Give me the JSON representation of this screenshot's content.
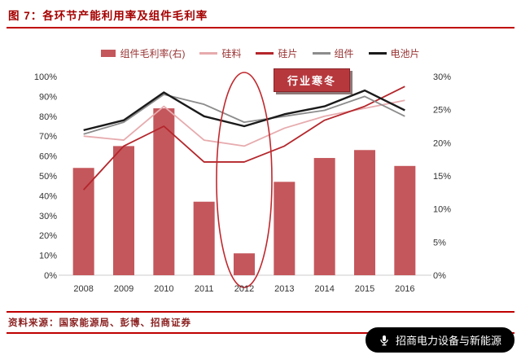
{
  "header": {
    "title": "图 7：各环节产能利用率及组件毛利率"
  },
  "chart_data": {
    "type": "combo(bar+line)",
    "title": "各环节产能利用率及组件毛利率",
    "categories": [
      "2008",
      "2009",
      "2010",
      "2011",
      "2012",
      "2013",
      "2014",
      "2015",
      "2016"
    ],
    "bar_series": {
      "id": "module-gross-margin",
      "name": "组件毛利率(右)",
      "axis": "right",
      "color": "#c4575c",
      "values": [
        16.2,
        19.5,
        25.2,
        11.1,
        3.3,
        14.1,
        17.7,
        18.9,
        16.5
      ]
    },
    "line_series": [
      {
        "id": "silicon-material",
        "name": "硅料",
        "axis": "left",
        "color": "#e7abae",
        "values": [
          70,
          68,
          85,
          68,
          65,
          74,
          80,
          84,
          88
        ]
      },
      {
        "id": "silicon-wafer",
        "name": "硅片",
        "axis": "left",
        "color": "#b4262b",
        "values": [
          43,
          65,
          75,
          57,
          57,
          65,
          78,
          85,
          95
        ]
      },
      {
        "id": "module",
        "name": "组件",
        "axis": "left",
        "color": "#8c8c8c",
        "values": [
          71,
          77,
          91,
          86,
          77,
          80,
          83,
          90,
          80
        ]
      },
      {
        "id": "cell",
        "name": "电池片",
        "axis": "left",
        "color": "#1a1a1a",
        "values": [
          73,
          78,
          92,
          80,
          75,
          81,
          85,
          93,
          83
        ]
      }
    ],
    "left_axis": {
      "min": 0,
      "max": 100,
      "step": 10,
      "suffix": "%"
    },
    "right_axis": {
      "min": 0,
      "max": 30,
      "step": 5,
      "suffix": "%"
    },
    "annotation": {
      "label": "行业寒冬",
      "ellipse_center_category": "2012"
    },
    "legend_position": "top",
    "grid": "off"
  },
  "source": {
    "text": "资料来源：国家能源局、彭博、招商证券"
  },
  "brand": {
    "label": "招商电力设备与新能源"
  },
  "colors": {
    "accent_red": "#c00000",
    "title_red": "#a50000",
    "annotation_bg": "#b6383d",
    "ellipse_stroke": "#c0282d",
    "bar": "#c4575c"
  }
}
